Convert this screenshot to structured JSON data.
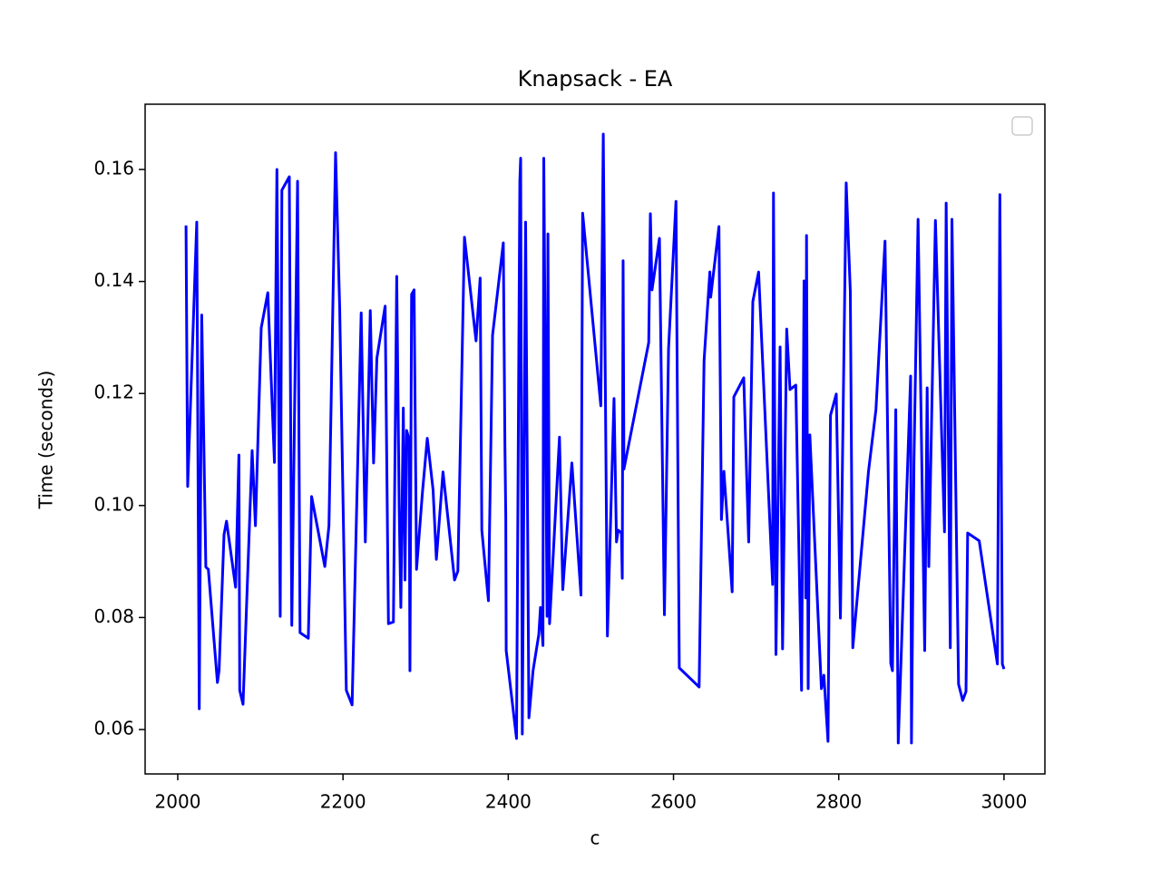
{
  "chart_data": {
    "type": "line",
    "title": "Knapsack - EA",
    "xlabel": "c",
    "ylabel": "Time (seconds)",
    "color": "#0000ff",
    "legend": "upper right",
    "xlim": [
      1960.5,
      3049.5
    ],
    "ylim": [
      0.05207,
      0.17165
    ],
    "xticks": [
      2000,
      2200,
      2400,
      2600,
      2800,
      3000
    ],
    "yticks": [
      0.06,
      0.08,
      {
        "value": 0.1,
        "label": "0.10"
      },
      0.12,
      0.14,
      0.16
    ],
    "x": [
      2010,
      2012,
      2023,
      2026,
      2029,
      2034,
      2037,
      2048,
      2050,
      2056,
      2059,
      2070,
      2074,
      2075,
      2079,
      2090,
      2094,
      2101,
      2109,
      2117,
      2120,
      2124,
      2126,
      2135,
      2138,
      2145,
      2148,
      2158,
      2162,
      2178,
      2183,
      2191,
      2196,
      2204,
      2211,
      2222,
      2227,
      2233,
      2237,
      2241,
      2251,
      2255,
      2261,
      2265,
      2268,
      2270,
      2273,
      2275,
      2277,
      2280,
      2281,
      2283,
      2286,
      2289,
      2296,
      2302,
      2309,
      2313,
      2321,
      2335,
      2339,
      2347,
      2361,
      2366,
      2368,
      2376,
      2381,
      2394,
      2396,
      2397,
      2397.5,
      2410,
      2414,
      2415,
      2417,
      2421,
      2425,
      2430,
      2437,
      2439,
      2442,
      2443,
      2447,
      2448,
      2450,
      2462,
      2466,
      2477,
      2488,
      2490,
      2512,
      2515,
      2520,
      2528,
      2531,
      2533,
      2537,
      2538,
      2539,
      2540,
      2570,
      2572,
      2574,
      2583,
      2589,
      2594,
      2603,
      2607,
      2631,
      2637,
      2644,
      2645,
      2655,
      2658,
      2661,
      2671,
      2673,
      2685,
      2691,
      2696,
      2703,
      2720,
      2721,
      2724,
      2729,
      2732,
      2737,
      2741,
      2748,
      2755,
      2758,
      2760,
      2761,
      2763,
      2765,
      2779,
      2782,
      2787,
      2790,
      2797,
      2802,
      2809,
      2814,
      2817,
      2836,
      2845,
      2856,
      2863,
      2865,
      2869,
      2872,
      2887,
      2888,
      2891,
      2896,
      2904,
      2907,
      2909,
      2917,
      2928,
      2930,
      2935,
      2937,
      2945,
      2950,
      2954,
      2956,
      2970,
      2992,
      2995,
      2998,
      3000
    ],
    "values": [
      0.15,
      0.1034,
      0.1506,
      0.0637,
      0.134,
      0.089,
      0.0886,
      0.0684,
      0.0705,
      0.0948,
      0.0972,
      0.0854,
      0.109,
      0.067,
      0.0645,
      0.1098,
      0.0964,
      0.1317,
      0.138,
      0.1077,
      0.16,
      0.0802,
      0.1563,
      0.1587,
      0.0786,
      0.1579,
      0.0773,
      0.0763,
      0.1016,
      0.0891,
      0.0964,
      0.163,
      0.1352,
      0.067,
      0.0644,
      0.1344,
      0.0935,
      0.1348,
      0.1076,
      0.1263,
      0.1356,
      0.0789,
      0.0792,
      0.1409,
      0.0996,
      0.0818,
      0.1174,
      0.0867,
      0.1134,
      0.1118,
      0.0705,
      0.1377,
      0.1385,
      0.0886,
      0.1021,
      0.112,
      0.1028,
      0.0904,
      0.106,
      0.0867,
      0.0883,
      0.1479,
      0.1294,
      0.1406,
      0.0956,
      0.083,
      0.1304,
      0.1469,
      0.1102,
      0.098,
      0.0741,
      0.0584,
      0.1579,
      0.162,
      0.0592,
      0.1506,
      0.0621,
      0.0705,
      0.077,
      0.0818,
      0.075,
      0.162,
      0.0802,
      0.1485,
      0.0789,
      0.1122,
      0.085,
      0.1076,
      0.084,
      0.1522,
      0.1178,
      0.1663,
      0.0767,
      0.1191,
      0.0935,
      0.0956,
      0.0951,
      0.087,
      0.1437,
      0.1065,
      0.1291,
      0.1521,
      0.1385,
      0.1477,
      0.0805,
      0.128,
      0.1543,
      0.071,
      0.0676,
      0.1259,
      0.1417,
      0.1372,
      0.1498,
      0.0975,
      0.1061,
      0.0846,
      0.1194,
      0.1228,
      0.0935,
      0.1364,
      0.1417,
      0.0859,
      0.1558,
      0.0734,
      0.1283,
      0.0744,
      0.1315,
      0.1207,
      0.1215,
      0.067,
      0.1401,
      0.0835,
      0.1482,
      0.0673,
      0.1126,
      0.0673,
      0.0697,
      0.0579,
      0.1161,
      0.1199,
      0.0799,
      0.1576,
      0.1382,
      0.0746,
      0.1061,
      0.1171,
      0.1472,
      0.0718,
      0.0705,
      0.1171,
      0.0576,
      0.1231,
      0.0576,
      0.1077,
      0.1511,
      0.0741,
      0.121,
      0.0891,
      0.1509,
      0.0953,
      0.154,
      0.0746,
      0.1511,
      0.0681,
      0.0652,
      0.0668,
      0.0951,
      0.0937,
      0.0717,
      0.1555,
      0.0717,
      0.0708
    ]
  }
}
